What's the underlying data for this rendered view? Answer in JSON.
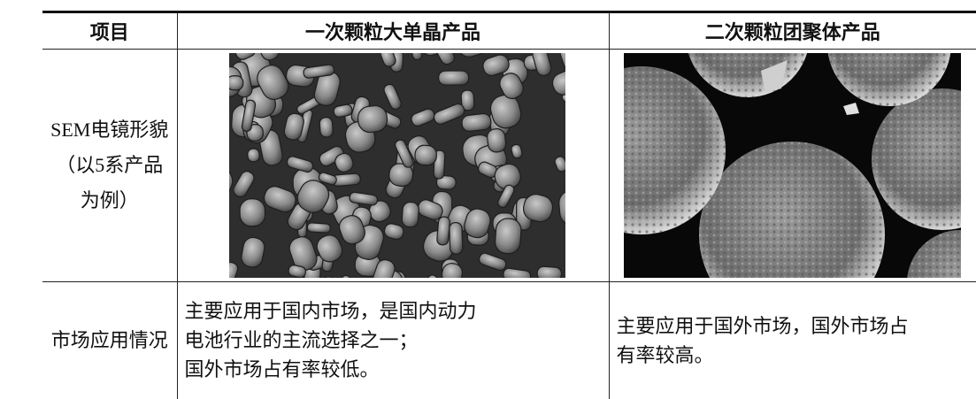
{
  "table": {
    "header": [
      "项目",
      "一次颗粒大单晶产品",
      "二次颗粒团聚体产品"
    ],
    "rows": [
      {
        "label": [
          "SEM电镜形貌",
          "（以5系产品",
          "为例）"
        ]
      },
      {
        "label": [
          "市场应用情况"
        ],
        "cells": [
          [
            "主要应用于国内市场，是国内动力",
            "电池行业的主流选择之一；",
            "国外市场占有率较低。"
          ],
          [
            "主要应用于国外市场，国外市场占",
            "有率较高。"
          ]
        ]
      }
    ]
  }
}
